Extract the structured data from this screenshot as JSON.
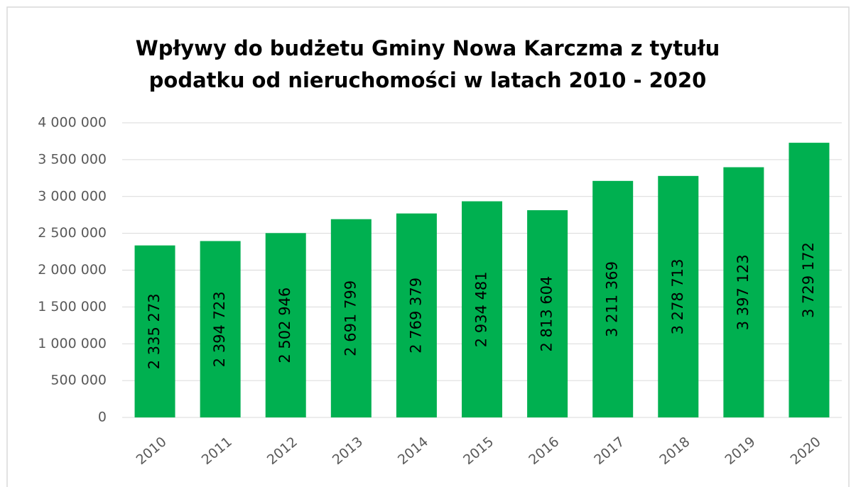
{
  "chart_data": {
    "type": "bar",
    "title": [
      "Wpływy do budżetu Gminy Nowa Karczma z tytułu",
      "podatku od nieruchomości  w latach 2010 - 2020"
    ],
    "categories": [
      "2010",
      "2011",
      "2012",
      "2013",
      "2014",
      "2015",
      "2016",
      "2017",
      "2018",
      "2019",
      "2020"
    ],
    "values": [
      2335273,
      2394723,
      2502946,
      2691799,
      2769379,
      2934481,
      2813604,
      3211369,
      3278713,
      3397123,
      3729172
    ],
    "value_labels": [
      "2 335 273",
      "2 394 723",
      "2 502 946",
      "2 691 799",
      "2 769 379",
      "2 934 481",
      "2 813 604",
      "3 211 369",
      "3 278 713",
      "3 397 123",
      "3 729 172"
    ],
    "color": "#00b050",
    "ylim": [
      0,
      4000000
    ],
    "yticks": [
      0,
      {
        "value": 500000,
        "label": "500 000"
      },
      {
        "value": 1000000,
        "label": "1 000 000"
      },
      {
        "value": 1500000,
        "label": "1 500 000"
      },
      {
        "value": 2000000,
        "label": "2 000 000"
      },
      {
        "value": 2500000,
        "label": "2 500 000"
      },
      {
        "value": 3000000,
        "label": "3 000 000"
      },
      {
        "value": 3500000,
        "label": "3 500 000"
      },
      {
        "value": 4000000,
        "label": "4 000 000"
      }
    ],
    "grid": true
  }
}
